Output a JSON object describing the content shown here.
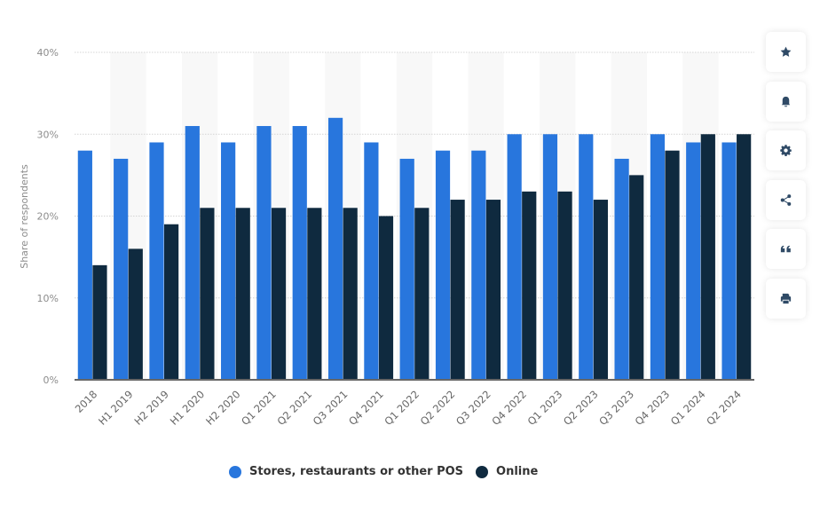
{
  "chart_data": {
    "type": "bar",
    "title": "",
    "xlabel": "",
    "ylabel": "Share of respondents",
    "ylim": [
      0,
      40
    ],
    "yticks": [
      "0%",
      "10%",
      "20%",
      "30%",
      "40%"
    ],
    "grid": true,
    "legend_position": "bottom",
    "categories": [
      "2018",
      "H1 2019",
      "H2 2019",
      "H1 2020",
      "H2 2020",
      "Q1 2021",
      "Q2 2021",
      "Q3 2021",
      "Q4 2021",
      "Q1 2022",
      "Q2 2022",
      "Q3 2022",
      "Q4 2022",
      "Q1 2023",
      "Q2 2023",
      "Q3 2023",
      "Q4 2023",
      "Q1 2024",
      "Q2 2024"
    ],
    "series": [
      {
        "name": "Stores, restaurants or other POS",
        "color": "#2876dd",
        "values": [
          28,
          27,
          29,
          31,
          29,
          31,
          31,
          32,
          29,
          27,
          28,
          28,
          30,
          30,
          30,
          27,
          30,
          29,
          29
        ]
      },
      {
        "name": "Online",
        "color": "#0f2a3f",
        "values": [
          14,
          16,
          19,
          21,
          21,
          21,
          21,
          21,
          20,
          21,
          22,
          22,
          23,
          23,
          22,
          25,
          28,
          30,
          30
        ]
      }
    ]
  },
  "legend": {
    "items": [
      {
        "label": "Stores, restaurants or other POS",
        "color": "#2876dd"
      },
      {
        "label": "Online",
        "color": "#0f2a3f"
      }
    ]
  },
  "toolbar": {
    "buttons": [
      {
        "icon": "star-icon",
        "label": "Favorite"
      },
      {
        "icon": "bell-icon",
        "label": "Notifications"
      },
      {
        "icon": "gear-icon",
        "label": "Settings"
      },
      {
        "icon": "share-icon",
        "label": "Share"
      },
      {
        "icon": "quote-icon",
        "label": "Cite"
      },
      {
        "icon": "print-icon",
        "label": "Print"
      }
    ]
  },
  "colors": {
    "primary_series": "#2876dd",
    "secondary_series": "#0f2a3f",
    "icon": "#2f4a66",
    "band": "#f8f8f8",
    "axis": "#666666"
  }
}
